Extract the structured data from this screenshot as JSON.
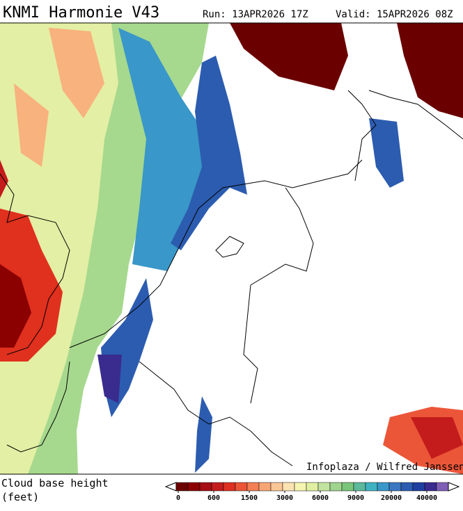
{
  "header": {
    "title": "KNMI Harmonie V43",
    "run": "Run: 13APR2026 17Z",
    "valid": "Valid: 15APR2026 08Z"
  },
  "credit": "Infoplaza / Wilfred Janssen",
  "legend": {
    "label_line1": "Cloud base height",
    "label_line2": "(feet)",
    "colors": [
      "#6b0000",
      "#8b0000",
      "#a50f15",
      "#c41c1c",
      "#dd3020",
      "#ec5638",
      "#f47f55",
      "#f8a676",
      "#fbc696",
      "#fde2b2",
      "#f6f4b2",
      "#e0efa2",
      "#c2e3a0",
      "#a0d48e",
      "#7ac57a",
      "#5cb99b",
      "#3fb2c2",
      "#3997c9",
      "#3a78c0",
      "#2c5cb0",
      "#1f40a0",
      "#3a2b8f",
      "#7e5fb5"
    ],
    "ticks": [
      0,
      600,
      1500,
      3000,
      6000,
      9000,
      20000,
      40000
    ]
  }
}
